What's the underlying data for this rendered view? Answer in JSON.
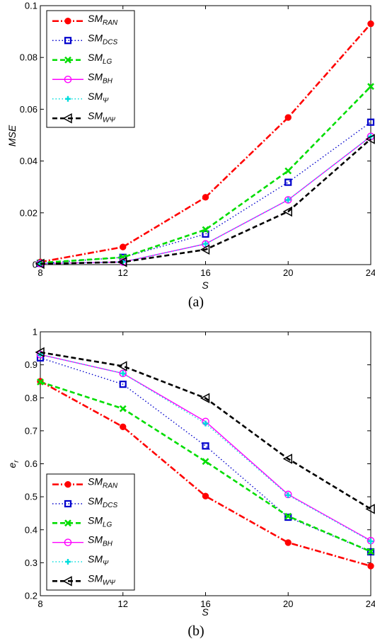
{
  "chart_data": [
    {
      "type": "line",
      "caption": "(a)",
      "xlabel": "S",
      "ylabel": "MSE",
      "x": [
        8,
        12,
        16,
        20,
        24
      ],
      "xlim": [
        8,
        24
      ],
      "ylim": [
        0,
        0.1
      ],
      "xticks": [
        "8",
        "12",
        "16",
        "20",
        "24"
      ],
      "yticks": [
        "0",
        "0.02",
        "0.04",
        "0.06",
        "0.08",
        "0.1"
      ],
      "grid": false,
      "legend_position": "top-left",
      "series": [
        {
          "name": "SM",
          "sub": "RAN",
          "color": "#ff0000",
          "dash": "9,3,2,3",
          "marker": "dot",
          "values": [
            0.001,
            0.0068,
            0.026,
            0.0568,
            0.093
          ]
        },
        {
          "name": "SM",
          "sub": "DCS",
          "color": "#0000cc",
          "dash": "1.5,3",
          "marker": "square",
          "values": [
            0.0005,
            0.0028,
            0.0118,
            0.0318,
            0.055
          ]
        },
        {
          "name": "SM",
          "sub": "LG",
          "color": "#00dd00",
          "dash": "7,4",
          "marker": "x",
          "values": [
            0.0007,
            0.0028,
            0.0135,
            0.0362,
            0.0688
          ]
        },
        {
          "name": "SM",
          "sub": "BH",
          "color": "#ff00ff",
          "dash": "",
          "marker": "circle",
          "values": [
            0.0004,
            0.001,
            0.008,
            0.025,
            0.0495
          ]
        },
        {
          "name": "SM",
          "sub": "Ψ",
          "color": "#00dddd",
          "dash": "1.5,3",
          "marker": "plus",
          "values": [
            0.0004,
            0.001,
            0.008,
            0.025,
            0.0495
          ]
        },
        {
          "name": "SM",
          "sub": "WΨ",
          "color": "#000000",
          "dash": "7,4",
          "marker": "triangle-left",
          "values": [
            0.0003,
            0.001,
            0.0058,
            0.0205,
            0.0485
          ]
        }
      ]
    },
    {
      "type": "line",
      "caption": "(b)",
      "xlabel": "S",
      "ylabel": "e",
      "ylabel_sub": "r",
      "x": [
        8,
        12,
        16,
        20,
        24
      ],
      "xlim": [
        8,
        24
      ],
      "ylim": [
        0.2,
        1
      ],
      "xticks": [
        "8",
        "12",
        "16",
        "20",
        "24"
      ],
      "yticks": [
        "0.2",
        "0.3",
        "0.4",
        "0.5",
        "0.6",
        "0.7",
        "0.8",
        "0.9",
        "1"
      ],
      "grid": false,
      "legend_position": "bottom-left",
      "series": [
        {
          "name": "SM",
          "sub": "RAN",
          "color": "#ff0000",
          "dash": "9,3,2,3",
          "marker": "dot",
          "values": [
            0.85,
            0.712,
            0.502,
            0.361,
            0.29
          ]
        },
        {
          "name": "SM",
          "sub": "DCS",
          "color": "#0000cc",
          "dash": "1.5,3",
          "marker": "square",
          "values": [
            0.921,
            0.841,
            0.654,
            0.438,
            0.333
          ]
        },
        {
          "name": "SM",
          "sub": "LG",
          "color": "#00dd00",
          "dash": "7,4",
          "marker": "x",
          "values": [
            0.848,
            0.767,
            0.607,
            0.441,
            0.334
          ]
        },
        {
          "name": "SM",
          "sub": "BH",
          "color": "#ff00ff",
          "dash": "",
          "marker": "circle",
          "values": [
            0.931,
            0.874,
            0.728,
            0.507,
            0.367
          ]
        },
        {
          "name": "SM",
          "sub": "Ψ",
          "color": "#00dddd",
          "dash": "1.5,3",
          "marker": "plus",
          "values": [
            0.931,
            0.874,
            0.722,
            0.505,
            0.365
          ]
        },
        {
          "name": "SM",
          "sub": "WΨ",
          "color": "#000000",
          "dash": "7,4",
          "marker": "triangle-left",
          "values": [
            0.938,
            0.896,
            0.799,
            0.615,
            0.463
          ]
        }
      ]
    }
  ]
}
